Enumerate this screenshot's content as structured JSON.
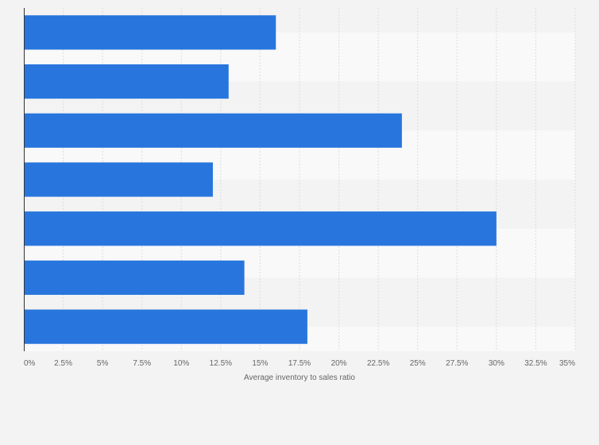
{
  "chart_data": {
    "type": "bar",
    "orientation": "horizontal",
    "categories": [
      "",
      "",
      "",
      "",
      "",
      "",
      ""
    ],
    "values": [
      16,
      13,
      24,
      12,
      30,
      14,
      18
    ],
    "xlabel": "Average inventory to sales ratio",
    "ylabel": "",
    "xlim": [
      0,
      35
    ],
    "ticks": [
      "0%",
      "2.5%",
      "5%",
      "7.5%",
      "10%",
      "12.5%",
      "15%",
      "17.5%",
      "20%",
      "22.5%",
      "25%",
      "27.5%",
      "30%",
      "32.5%",
      "35%"
    ],
    "tick_values": [
      0,
      2.5,
      5,
      7.5,
      10,
      12.5,
      15,
      17.5,
      20,
      22.5,
      25,
      27.5,
      30,
      32.5,
      35
    ],
    "grid": true,
    "legend": "none",
    "colors": {
      "bar": "#2876dd",
      "band_dark": "#f3f3f3",
      "band_light": "#f9f9f9",
      "grid": "#dddddd",
      "axis": "#333333",
      "text": "#666666"
    }
  }
}
